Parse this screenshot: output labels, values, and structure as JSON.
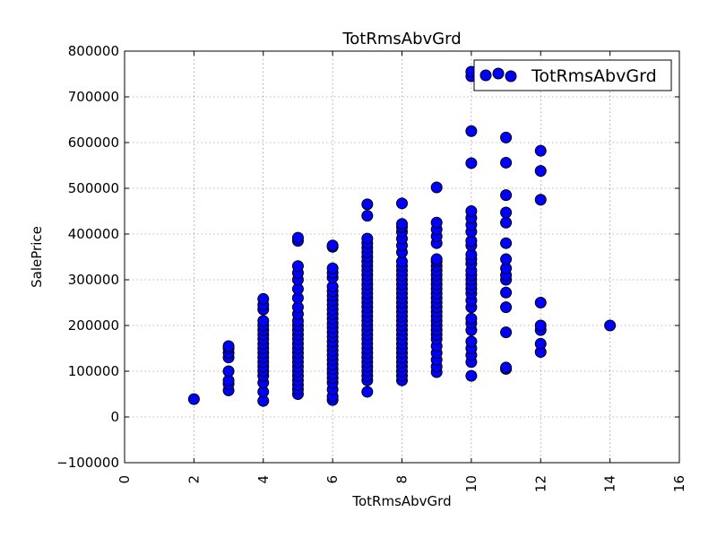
{
  "chart_data": {
    "type": "scatter",
    "title": "TotRmsAbvGrd",
    "xlabel": "TotRmsAbvGrd",
    "ylabel": "SalePrice",
    "xlim": [
      0,
      16
    ],
    "ylim": [
      -100000,
      800000
    ],
    "x_ticks": [
      0,
      2,
      4,
      6,
      8,
      10,
      12,
      14,
      16
    ],
    "y_ticks": [
      -100000,
      0,
      100000,
      200000,
      300000,
      400000,
      500000,
      600000,
      700000,
      800000
    ],
    "x_tick_labels": [
      "0",
      "2",
      "4",
      "6",
      "8",
      "10",
      "12",
      "14",
      "16"
    ],
    "y_tick_labels": [
      "−100000",
      "0",
      "100000",
      "200000",
      "300000",
      "400000",
      "500000",
      "600000",
      "700000",
      "800000"
    ],
    "grid": true,
    "legend_position": "top-right",
    "marker_color": "#0000ff",
    "marker_edge_color": "#000000",
    "series": [
      {
        "name": "TotRmsAbvGrd",
        "points": [
          [
            2,
            39000
          ],
          [
            3,
            58000
          ],
          [
            3,
            72000
          ],
          [
            3,
            80000
          ],
          [
            3,
            100000
          ],
          [
            3,
            130000
          ],
          [
            3,
            140000
          ],
          [
            3,
            150000
          ],
          [
            3,
            155000
          ],
          [
            4,
            35000
          ],
          [
            4,
            55000
          ],
          [
            4,
            75000
          ],
          [
            4,
            90000
          ],
          [
            4,
            100000
          ],
          [
            4,
            110000
          ],
          [
            4,
            120000
          ],
          [
            4,
            130000
          ],
          [
            4,
            140000
          ],
          [
            4,
            150000
          ],
          [
            4,
            160000
          ],
          [
            4,
            170000
          ],
          [
            4,
            180000
          ],
          [
            4,
            190000
          ],
          [
            4,
            200000
          ],
          [
            4,
            210000
          ],
          [
            4,
            235000
          ],
          [
            4,
            245000
          ],
          [
            4,
            258000
          ],
          [
            5,
            50000
          ],
          [
            5,
            60000
          ],
          [
            5,
            70000
          ],
          [
            5,
            80000
          ],
          [
            5,
            90000
          ],
          [
            5,
            100000
          ],
          [
            5,
            110000
          ],
          [
            5,
            120000
          ],
          [
            5,
            130000
          ],
          [
            5,
            140000
          ],
          [
            5,
            150000
          ],
          [
            5,
            160000
          ],
          [
            5,
            170000
          ],
          [
            5,
            180000
          ],
          [
            5,
            190000
          ],
          [
            5,
            200000
          ],
          [
            5,
            210000
          ],
          [
            5,
            225000
          ],
          [
            5,
            240000
          ],
          [
            5,
            260000
          ],
          [
            5,
            280000
          ],
          [
            5,
            300000
          ],
          [
            5,
            315000
          ],
          [
            5,
            330000
          ],
          [
            5,
            385000
          ],
          [
            5,
            392000
          ],
          [
            6,
            37000
          ],
          [
            6,
            45000
          ],
          [
            6,
            60000
          ],
          [
            6,
            75000
          ],
          [
            6,
            85000
          ],
          [
            6,
            95000
          ],
          [
            6,
            105000
          ],
          [
            6,
            115000
          ],
          [
            6,
            125000
          ],
          [
            6,
            135000
          ],
          [
            6,
            145000
          ],
          [
            6,
            155000
          ],
          [
            6,
            165000
          ],
          [
            6,
            175000
          ],
          [
            6,
            185000
          ],
          [
            6,
            195000
          ],
          [
            6,
            205000
          ],
          [
            6,
            215000
          ],
          [
            6,
            225000
          ],
          [
            6,
            235000
          ],
          [
            6,
            245000
          ],
          [
            6,
            255000
          ],
          [
            6,
            265000
          ],
          [
            6,
            275000
          ],
          [
            6,
            285000
          ],
          [
            6,
            305000
          ],
          [
            6,
            315000
          ],
          [
            6,
            325000
          ],
          [
            6,
            372000
          ],
          [
            6,
            375000
          ],
          [
            7,
            55000
          ],
          [
            7,
            80000
          ],
          [
            7,
            90000
          ],
          [
            7,
            100000
          ],
          [
            7,
            110000
          ],
          [
            7,
            120000
          ],
          [
            7,
            130000
          ],
          [
            7,
            140000
          ],
          [
            7,
            150000
          ],
          [
            7,
            160000
          ],
          [
            7,
            170000
          ],
          [
            7,
            180000
          ],
          [
            7,
            190000
          ],
          [
            7,
            200000
          ],
          [
            7,
            210000
          ],
          [
            7,
            220000
          ],
          [
            7,
            230000
          ],
          [
            7,
            240000
          ],
          [
            7,
            250000
          ],
          [
            7,
            260000
          ],
          [
            7,
            270000
          ],
          [
            7,
            280000
          ],
          [
            7,
            290000
          ],
          [
            7,
            300000
          ],
          [
            7,
            310000
          ],
          [
            7,
            320000
          ],
          [
            7,
            330000
          ],
          [
            7,
            340000
          ],
          [
            7,
            350000
          ],
          [
            7,
            360000
          ],
          [
            7,
            370000
          ],
          [
            7,
            380000
          ],
          [
            7,
            390000
          ],
          [
            7,
            440000
          ],
          [
            7,
            465000
          ],
          [
            8,
            80000
          ],
          [
            8,
            90000
          ],
          [
            8,
            100000
          ],
          [
            8,
            110000
          ],
          [
            8,
            120000
          ],
          [
            8,
            130000
          ],
          [
            8,
            140000
          ],
          [
            8,
            150000
          ],
          [
            8,
            160000
          ],
          [
            8,
            170000
          ],
          [
            8,
            180000
          ],
          [
            8,
            190000
          ],
          [
            8,
            200000
          ],
          [
            8,
            210000
          ],
          [
            8,
            220000
          ],
          [
            8,
            230000
          ],
          [
            8,
            240000
          ],
          [
            8,
            250000
          ],
          [
            8,
            260000
          ],
          [
            8,
            270000
          ],
          [
            8,
            280000
          ],
          [
            8,
            290000
          ],
          [
            8,
            300000
          ],
          [
            8,
            310000
          ],
          [
            8,
            320000
          ],
          [
            8,
            330000
          ],
          [
            8,
            340000
          ],
          [
            8,
            360000
          ],
          [
            8,
            375000
          ],
          [
            8,
            390000
          ],
          [
            8,
            405000
          ],
          [
            8,
            415000
          ],
          [
            8,
            422000
          ],
          [
            8,
            467000
          ],
          [
            9,
            98000
          ],
          [
            9,
            110000
          ],
          [
            9,
            125000
          ],
          [
            9,
            140000
          ],
          [
            9,
            155000
          ],
          [
            9,
            170000
          ],
          [
            9,
            180000
          ],
          [
            9,
            190000
          ],
          [
            9,
            200000
          ],
          [
            9,
            210000
          ],
          [
            9,
            220000
          ],
          [
            9,
            230000
          ],
          [
            9,
            240000
          ],
          [
            9,
            250000
          ],
          [
            9,
            260000
          ],
          [
            9,
            270000
          ],
          [
            9,
            280000
          ],
          [
            9,
            290000
          ],
          [
            9,
            300000
          ],
          [
            9,
            310000
          ],
          [
            9,
            320000
          ],
          [
            9,
            330000
          ],
          [
            9,
            340000
          ],
          [
            9,
            345000
          ],
          [
            9,
            380000
          ],
          [
            9,
            395000
          ],
          [
            9,
            410000
          ],
          [
            9,
            425000
          ],
          [
            9,
            502000
          ],
          [
            10,
            90000
          ],
          [
            10,
            120000
          ],
          [
            10,
            135000
          ],
          [
            10,
            150000
          ],
          [
            10,
            165000
          ],
          [
            10,
            190000
          ],
          [
            10,
            205000
          ],
          [
            10,
            215000
          ],
          [
            10,
            240000
          ],
          [
            10,
            255000
          ],
          [
            10,
            270000
          ],
          [
            10,
            280000
          ],
          [
            10,
            290000
          ],
          [
            10,
            300000
          ],
          [
            10,
            310000
          ],
          [
            10,
            320000
          ],
          [
            10,
            335000
          ],
          [
            10,
            345000
          ],
          [
            10,
            355000
          ],
          [
            10,
            375000
          ],
          [
            10,
            385000
          ],
          [
            10,
            405000
          ],
          [
            10,
            420000
          ],
          [
            10,
            435000
          ],
          [
            10,
            450000
          ],
          [
            10,
            555000
          ],
          [
            10,
            625000
          ],
          [
            10,
            745000
          ],
          [
            10,
            755000
          ],
          [
            11,
            105000
          ],
          [
            11,
            108000
          ],
          [
            11,
            185000
          ],
          [
            11,
            240000
          ],
          [
            11,
            272000
          ],
          [
            11,
            300000
          ],
          [
            11,
            310000
          ],
          [
            11,
            325000
          ],
          [
            11,
            345000
          ],
          [
            11,
            380000
          ],
          [
            11,
            425000
          ],
          [
            11,
            447000
          ],
          [
            11,
            485000
          ],
          [
            11,
            556000
          ],
          [
            11,
            611000
          ],
          [
            12,
            142000
          ],
          [
            12,
            160000
          ],
          [
            12,
            190000
          ],
          [
            12,
            200000
          ],
          [
            12,
            250000
          ],
          [
            12,
            475000
          ],
          [
            12,
            538000
          ],
          [
            12,
            582000
          ],
          [
            14,
            200000
          ]
        ]
      }
    ]
  }
}
